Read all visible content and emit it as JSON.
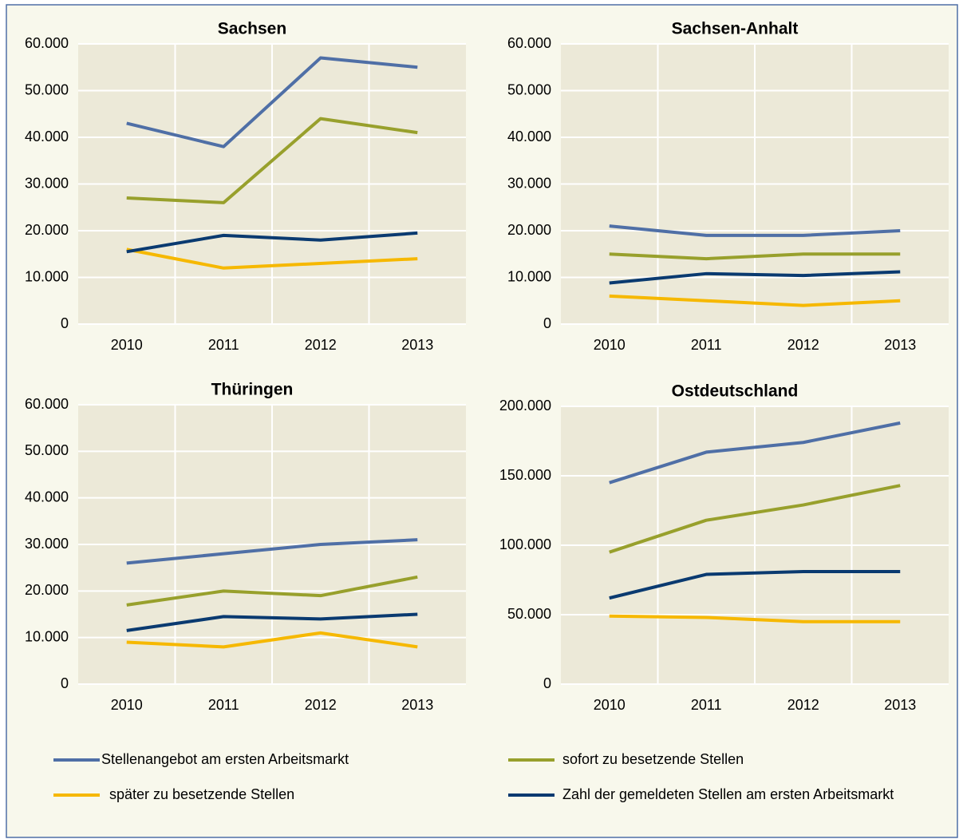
{
  "chart_data": [
    {
      "type": "line",
      "title": "Sachsen",
      "categories": [
        "2010",
        "2011",
        "2012",
        "2013"
      ],
      "ylim": [
        0,
        60000
      ],
      "yticks": [
        0,
        {
          "value": 10000,
          "label": "10.000"
        },
        {
          "value": 20000,
          "label": "20.000"
        },
        {
          "value": 30000,
          "label": "30.000"
        },
        {
          "value": 40000,
          "label": "40.000"
        },
        {
          "value": 50000,
          "label": "50.000"
        },
        {
          "value": 60000,
          "label": "60.000"
        }
      ],
      "grid": true,
      "series": [
        {
          "name": "Stellenangebot am ersten Arbeitsmarkt",
          "color": "#4f6fa6",
          "values": [
            43000,
            38000,
            57000,
            55000
          ]
        },
        {
          "name": "sofort zu besetzende Stellen",
          "color": "#98a02c",
          "values": [
            27000,
            26000,
            44000,
            41000
          ]
        },
        {
          "name": "später zu besetzende Stellen",
          "color": "#f6b800",
          "values": [
            16000,
            12000,
            13000,
            14000
          ]
        },
        {
          "name": "Zahl der gemeldeten Stellen am ersten Arbeitsmarkt",
          "color": "#0a3a70",
          "values": [
            15500,
            19000,
            18000,
            19500
          ]
        }
      ]
    },
    {
      "type": "line",
      "title": "Sachsen-Anhalt",
      "categories": [
        "2010",
        "2011",
        "2012",
        "2013"
      ],
      "ylim": [
        0,
        60000
      ],
      "yticks": [
        0,
        {
          "value": 10000,
          "label": "10.000"
        },
        {
          "value": 20000,
          "label": "20.000"
        },
        {
          "value": 30000,
          "label": "30.000"
        },
        {
          "value": 40000,
          "label": "40.000"
        },
        {
          "value": 50000,
          "label": "50.000"
        },
        {
          "value": 60000,
          "label": "60.000"
        }
      ],
      "grid": true,
      "series": [
        {
          "color": "#4f6fa6",
          "values": [
            21000,
            19000,
            19000,
            20000
          ]
        },
        {
          "color": "#98a02c",
          "values": [
            15000,
            14000,
            15000,
            15000
          ]
        },
        {
          "color": "#f6b800",
          "values": [
            6000,
            5000,
            4000,
            5000
          ]
        },
        {
          "color": "#0a3a70",
          "values": [
            8800,
            10800,
            10400,
            11200
          ]
        }
      ]
    },
    {
      "type": "line",
      "title": "Thüringen",
      "categories": [
        "2010",
        "2011",
        "2012",
        "2013"
      ],
      "ylim": [
        0,
        60000
      ],
      "yticks": [
        0,
        {
          "value": 10000,
          "label": "10.000"
        },
        {
          "value": 20000,
          "label": "20.000"
        },
        {
          "value": 30000,
          "label": "30.000"
        },
        {
          "value": 40000,
          "label": "40.000"
        },
        {
          "value": 50000,
          "label": "50.000"
        },
        {
          "value": 60000,
          "label": "60.000"
        }
      ],
      "grid": true,
      "series": [
        {
          "color": "#4f6fa6",
          "values": [
            26000,
            28000,
            30000,
            31000
          ]
        },
        {
          "color": "#98a02c",
          "values": [
            17000,
            20000,
            19000,
            23000
          ]
        },
        {
          "color": "#f6b800",
          "values": [
            9000,
            8000,
            11000,
            8000
          ]
        },
        {
          "color": "#0a3a70",
          "values": [
            11500,
            14500,
            14000,
            15000
          ]
        }
      ]
    },
    {
      "type": "line",
      "title": "Ostdeutschland",
      "categories": [
        "2010",
        "2011",
        "2012",
        "2013"
      ],
      "ylim": [
        0,
        200000
      ],
      "yticks": [
        0,
        {
          "value": 50000,
          "label": "50.000"
        },
        {
          "value": 100000,
          "label": "100.000"
        },
        {
          "value": 150000,
          "label": "150.000"
        },
        {
          "value": 200000,
          "label": "200.000"
        }
      ],
      "grid": true,
      "series": [
        {
          "color": "#4f6fa6",
          "values": [
            145000,
            167000,
            174000,
            188000
          ]
        },
        {
          "color": "#98a02c",
          "values": [
            95000,
            118000,
            129000,
            143000
          ]
        },
        {
          "color": "#f6b800",
          "values": [
            49000,
            48000,
            45000,
            45000
          ]
        },
        {
          "color": "#0a3a70",
          "values": [
            62000,
            79000,
            81000,
            81000
          ]
        }
      ]
    }
  ]
}
